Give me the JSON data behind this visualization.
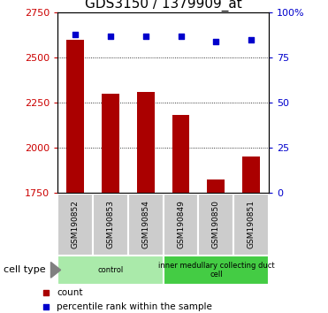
{
  "title": "GDS3150 / 1379909_at",
  "samples": [
    "GSM190852",
    "GSM190853",
    "GSM190854",
    "GSM190849",
    "GSM190850",
    "GSM190851"
  ],
  "counts": [
    2600,
    2300,
    2310,
    2180,
    1820,
    1950
  ],
  "percentiles": [
    88,
    87,
    87,
    87,
    84,
    85
  ],
  "ylim_left": [
    1750,
    2750
  ],
  "ylim_right": [
    0,
    100
  ],
  "yticks_left": [
    1750,
    2000,
    2250,
    2500,
    2750
  ],
  "yticks_right": [
    0,
    25,
    50,
    75,
    100
  ],
  "bar_color": "#aa0000",
  "dot_color": "#0000cc",
  "bar_width": 0.5,
  "bg_plot": "#ffffff",
  "cell_type_label": "cell type",
  "groups": [
    {
      "label": "control",
      "indices": [
        0,
        1,
        2
      ],
      "color": "#aaeaaa"
    },
    {
      "label": "inner medullary collecting duct\ncell",
      "indices": [
        3,
        4,
        5
      ],
      "color": "#44cc44"
    }
  ],
  "legend_count_label": "count",
  "legend_percentile_label": "percentile rank within the sample",
  "title_fontsize": 11,
  "tick_fontsize": 8,
  "left_tick_color": "#cc0000",
  "right_tick_color": "#0000cc"
}
